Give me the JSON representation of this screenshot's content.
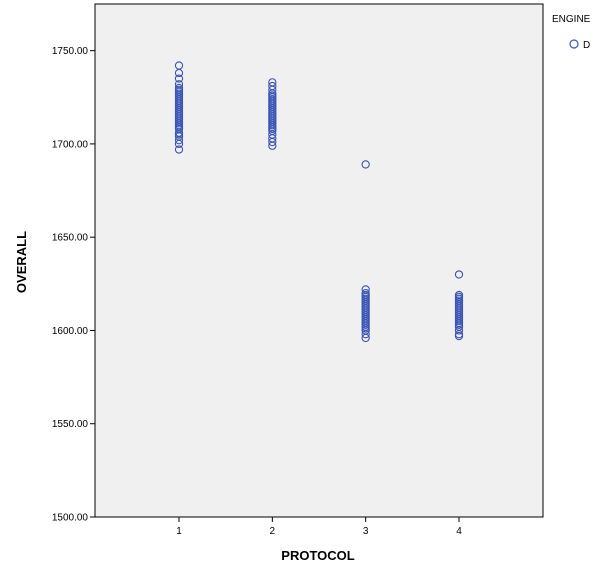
{
  "chart_data": {
    "type": "scatter",
    "title": "",
    "xlabel": "PROTOCOL",
    "ylabel": "OVERALL",
    "xlim": [
      0.1,
      4.9
    ],
    "ylim": [
      1500,
      1775
    ],
    "x_ticks": [
      1,
      2,
      3,
      4
    ],
    "x_tick_labels": [
      "1",
      "2",
      "3",
      "4"
    ],
    "y_ticks": [
      1500,
      1550,
      1600,
      1650,
      1700,
      1750
    ],
    "y_tick_labels": [
      "1500.00",
      "1550.00",
      "1600.00",
      "1650.00",
      "1700.00",
      "1750.00"
    ],
    "grid": false,
    "legend": {
      "title": "ENGINE",
      "placement": "top-right",
      "entries": [
        "D"
      ]
    },
    "series": [
      {
        "name": "D",
        "color": "#3b55b5",
        "marker": "open-circle",
        "points": [
          [
            1,
            1742
          ],
          [
            1,
            1738
          ],
          [
            1,
            1735
          ],
          [
            1,
            1732
          ],
          [
            1,
            1730
          ],
          [
            1,
            1729
          ],
          [
            1,
            1728
          ],
          [
            1,
            1727
          ],
          [
            1,
            1726
          ],
          [
            1,
            1725
          ],
          [
            1,
            1724
          ],
          [
            1,
            1723
          ],
          [
            1,
            1722
          ],
          [
            1,
            1721
          ],
          [
            1,
            1720
          ],
          [
            1,
            1719
          ],
          [
            1,
            1718
          ],
          [
            1,
            1717
          ],
          [
            1,
            1716
          ],
          [
            1,
            1715
          ],
          [
            1,
            1714
          ],
          [
            1,
            1713
          ],
          [
            1,
            1712
          ],
          [
            1,
            1711
          ],
          [
            1,
            1710
          ],
          [
            1,
            1709
          ],
          [
            1,
            1708
          ],
          [
            1,
            1706
          ],
          [
            1,
            1705
          ],
          [
            1,
            1704
          ],
          [
            1,
            1702
          ],
          [
            1,
            1700
          ],
          [
            1,
            1697
          ],
          [
            2,
            1733
          ],
          [
            2,
            1731
          ],
          [
            2,
            1729
          ],
          [
            2,
            1727
          ],
          [
            2,
            1726
          ],
          [
            2,
            1725
          ],
          [
            2,
            1724
          ],
          [
            2,
            1723
          ],
          [
            2,
            1722
          ],
          [
            2,
            1721
          ],
          [
            2,
            1720
          ],
          [
            2,
            1719
          ],
          [
            2,
            1718
          ],
          [
            2,
            1717
          ],
          [
            2,
            1716
          ],
          [
            2,
            1715
          ],
          [
            2,
            1714
          ],
          [
            2,
            1713
          ],
          [
            2,
            1712
          ],
          [
            2,
            1711
          ],
          [
            2,
            1710
          ],
          [
            2,
            1709
          ],
          [
            2,
            1708
          ],
          [
            2,
            1707
          ],
          [
            2,
            1705
          ],
          [
            2,
            1703
          ],
          [
            2,
            1701
          ],
          [
            2,
            1699
          ],
          [
            3,
            1689
          ],
          [
            3,
            1622
          ],
          [
            3,
            1620
          ],
          [
            3,
            1619
          ],
          [
            3,
            1618
          ],
          [
            3,
            1617
          ],
          [
            3,
            1616
          ],
          [
            3,
            1615
          ],
          [
            3,
            1614
          ],
          [
            3,
            1613
          ],
          [
            3,
            1612
          ],
          [
            3,
            1611
          ],
          [
            3,
            1610
          ],
          [
            3,
            1609
          ],
          [
            3,
            1608
          ],
          [
            3,
            1607
          ],
          [
            3,
            1606
          ],
          [
            3,
            1605
          ],
          [
            3,
            1604
          ],
          [
            3,
            1603
          ],
          [
            3,
            1602
          ],
          [
            3,
            1601
          ],
          [
            3,
            1600
          ],
          [
            3,
            1598
          ],
          [
            3,
            1596
          ],
          [
            4,
            1630
          ],
          [
            4,
            1619
          ],
          [
            4,
            1618
          ],
          [
            4,
            1617
          ],
          [
            4,
            1616
          ],
          [
            4,
            1615
          ],
          [
            4,
            1614
          ],
          [
            4,
            1613
          ],
          [
            4,
            1612
          ],
          [
            4,
            1611
          ],
          [
            4,
            1610
          ],
          [
            4,
            1609
          ],
          [
            4,
            1608
          ],
          [
            4,
            1607
          ],
          [
            4,
            1606
          ],
          [
            4,
            1605
          ],
          [
            4,
            1604
          ],
          [
            4,
            1603
          ],
          [
            4,
            1602
          ],
          [
            4,
            1600
          ],
          [
            4,
            1598
          ],
          [
            4,
            1597
          ]
        ]
      }
    ]
  }
}
